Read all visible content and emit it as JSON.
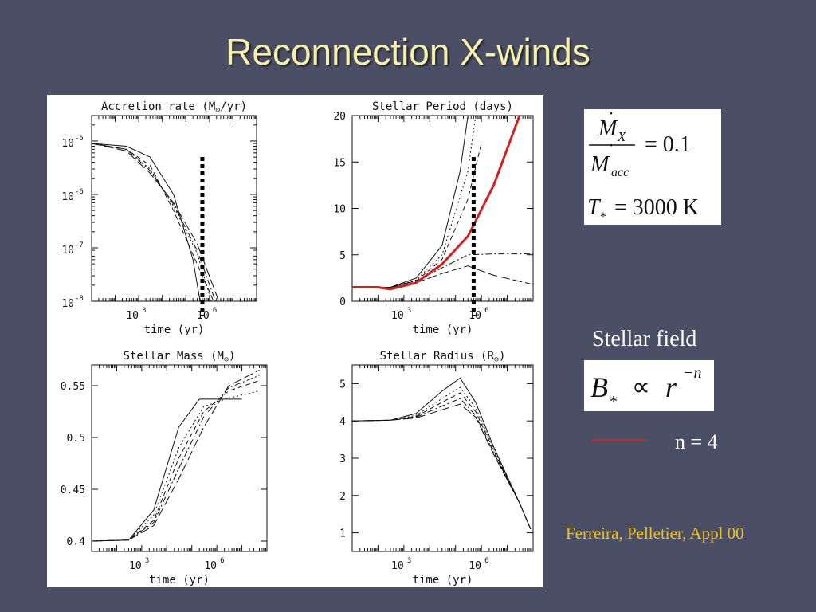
{
  "slide": {
    "title": "Reconnection X-winds",
    "citation": "Ferreira, Pelletier, Appl 00"
  },
  "equations": {
    "mdot_ratio": {
      "num": "M",
      "num_sub": "X",
      "den": "M",
      "den_sub": "acc",
      "value": "= 0.1"
    },
    "temperature": {
      "lhs": "T",
      "lhs_sub": "*",
      "value": "= 3000 K"
    },
    "field": {
      "lhs": "B",
      "lhs_sub": "*",
      "prop": "∝",
      "rhs": "r",
      "exp": "−n"
    }
  },
  "stellar_field_label": "Stellar field",
  "legend": {
    "label": "n = 4",
    "color": "#d42020"
  },
  "colors": {
    "background": "#4b4f66",
    "title": "#f6f0a8",
    "citation": "#f0c020",
    "highlight": "#d42020"
  },
  "chart_data": [
    {
      "id": "accretion",
      "type": "line",
      "title": "Accretion rate (M",
      "title_symbol": "⊙",
      "title_suffix": "/yr)",
      "xlabel": "time (yr)",
      "x_scale": "log",
      "y_scale": "log",
      "xlim": [
        10,
        100000000
      ],
      "ylim": [
        1e-08,
        3e-05
      ],
      "xticks": [
        {
          "base": "10",
          "exp": "3",
          "value": 1000
        },
        {
          "base": "10",
          "exp": "6",
          "value": 1000000
        }
      ],
      "yticks": [
        {
          "base": "10",
          "exp": "-5",
          "value": 1e-05
        },
        {
          "base": "10",
          "exp": "-6",
          "value": 1e-06
        },
        {
          "base": "10",
          "exp": "-7",
          "value": 1e-07
        },
        {
          "base": "10",
          "exp": "-8",
          "value": 1e-08
        }
      ],
      "marker_x": 500000,
      "series": [
        {
          "dash": "",
          "points": [
            [
              10,
              9e-06
            ],
            [
              300,
              8e-06
            ],
            [
              3000,
              5e-06
            ],
            [
              30000,
              1e-06
            ],
            [
              200000,
              6e-08
            ],
            [
              400000,
              1e-08
            ]
          ]
        },
        {
          "dash": "6 4",
          "points": [
            [
              10,
              9e-06
            ],
            [
              300,
              7e-06
            ],
            [
              3000,
              3.5e-06
            ],
            [
              30000,
              5e-07
            ],
            [
              300000,
              5e-08
            ],
            [
              1500000,
              1e-08
            ]
          ]
        },
        {
          "dash": "2 3",
          "points": [
            [
              10,
              9e-06
            ],
            [
              300,
              7e-06
            ],
            [
              3000,
              3e-06
            ],
            [
              30000,
              6e-07
            ],
            [
              300000,
              8e-08
            ],
            [
              1200000,
              1e-08
            ]
          ]
        },
        {
          "dash": "8 3 2 3",
          "points": [
            [
              10,
              9e-06
            ],
            [
              300,
              7e-06
            ],
            [
              3000,
              2.8e-06
            ],
            [
              30000,
              6.5e-07
            ],
            [
              300000,
              9e-08
            ],
            [
              1800000,
              1e-08
            ]
          ]
        },
        {
          "dash": "12 4",
          "points": [
            [
              10,
              9e-06
            ],
            [
              300,
              6.5e-06
            ],
            [
              3000,
              2.5e-06
            ],
            [
              30000,
              7e-07
            ],
            [
              300000,
              1.2e-07
            ],
            [
              2500000,
              1e-08
            ]
          ]
        }
      ]
    },
    {
      "id": "period",
      "type": "line",
      "title": "Stellar Period (days)",
      "title_symbol": "",
      "title_suffix": "",
      "xlabel": "time (yr)",
      "x_scale": "log",
      "y_scale": "linear",
      "xlim": [
        10,
        100000000
      ],
      "ylim": [
        0,
        20
      ],
      "xticks": [
        {
          "base": "10",
          "exp": "3",
          "value": 1000
        },
        {
          "base": "10",
          "exp": "6",
          "value": 1000000
        }
      ],
      "yticks": [
        {
          "label": "0",
          "value": 0
        },
        {
          "label": "5",
          "value": 5
        },
        {
          "label": "10",
          "value": 10
        },
        {
          "label": "15",
          "value": 15
        },
        {
          "label": "20",
          "value": 20
        }
      ],
      "marker_x": 500000,
      "series": [
        {
          "dash": "",
          "points": [
            [
              10,
              1.5
            ],
            [
              300,
              1.5
            ],
            [
              3000,
              2.5
            ],
            [
              30000,
              6
            ],
            [
              150000,
              14
            ],
            [
              300000,
              20
            ]
          ]
        },
        {
          "dash": "2 3",
          "points": [
            [
              10,
              1.5
            ],
            [
              300,
              1.5
            ],
            [
              3000,
              2.3
            ],
            [
              30000,
              5
            ],
            [
              300000,
              14
            ],
            [
              600000,
              20
            ]
          ]
        },
        {
          "dash": "6 4",
          "points": [
            [
              10,
              1.5
            ],
            [
              300,
              1.5
            ],
            [
              3000,
              2.2
            ],
            [
              30000,
              4.5
            ],
            [
              300000,
              11
            ],
            [
              1000000,
              17
            ]
          ]
        },
        {
          "dash": "8 3 2 3",
          "points": [
            [
              10,
              1.5
            ],
            [
              300,
              1.5
            ],
            [
              3000,
              2.2
            ],
            [
              30000,
              3.6
            ],
            [
              300000,
              5
            ],
            [
              3000000,
              5.1
            ],
            [
              100000000,
              5.1
            ]
          ]
        },
        {
          "dash": "12 4",
          "points": [
            [
              10,
              1.5
            ],
            [
              300,
              1.5
            ],
            [
              3000,
              2
            ],
            [
              30000,
              3
            ],
            [
              300000,
              3.8
            ],
            [
              3000000,
              2.8
            ],
            [
              100000000,
              1.8
            ]
          ]
        },
        {
          "color": "#d42020",
          "width": 3,
          "dash": "",
          "highlight": true,
          "points": [
            [
              10,
              1.5
            ],
            [
              100,
              1.5
            ],
            [
              300,
              1.3
            ],
            [
              3000,
              2
            ],
            [
              30000,
              4
            ],
            [
              300000,
              7
            ],
            [
              3000000,
              12.5
            ],
            [
              30000000,
              20
            ]
          ]
        }
      ]
    },
    {
      "id": "mass",
      "type": "line",
      "title": "Stellar Mass (M",
      "title_symbol": "⊙",
      "title_suffix": ")",
      "xlabel": "time (yr)",
      "x_scale": "log",
      "y_scale": "linear",
      "xlim": [
        10,
        100000000
      ],
      "ylim": [
        0.39,
        0.57
      ],
      "xticks": [
        {
          "base": "10",
          "exp": "3",
          "value": 1000
        },
        {
          "base": "10",
          "exp": "6",
          "value": 1000000
        }
      ],
      "yticks": [
        {
          "label": "0.4",
          "value": 0.4
        },
        {
          "label": "0.45",
          "value": 0.45
        },
        {
          "label": "0.5",
          "value": 0.5
        },
        {
          "label": "0.55",
          "value": 0.55
        }
      ],
      "marker_x": null,
      "series": [
        {
          "dash": "",
          "points": [
            [
              10,
              0.4
            ],
            [
              300,
              0.401
            ],
            [
              3000,
              0.43
            ],
            [
              30000,
              0.51
            ],
            [
              200000,
              0.537
            ],
            [
              1000000,
              0.537
            ],
            [
              10000000,
              0.537
            ]
          ]
        },
        {
          "dash": "2 3",
          "points": [
            [
              10,
              0.4
            ],
            [
              300,
              0.401
            ],
            [
              3000,
              0.425
            ],
            [
              30000,
              0.49
            ],
            [
              300000,
              0.53
            ],
            [
              3000000,
              0.538
            ],
            [
              50000000,
              0.545
            ]
          ]
        },
        {
          "dash": "6 4",
          "points": [
            [
              10,
              0.4
            ],
            [
              300,
              0.401
            ],
            [
              3000,
              0.42
            ],
            [
              30000,
              0.48
            ],
            [
              300000,
              0.525
            ],
            [
              3000000,
              0.545
            ],
            [
              50000000,
              0.555
            ]
          ]
        },
        {
          "dash": "8 3 2 3",
          "points": [
            [
              10,
              0.4
            ],
            [
              300,
              0.401
            ],
            [
              3000,
              0.418
            ],
            [
              30000,
              0.47
            ],
            [
              300000,
              0.52
            ],
            [
              3000000,
              0.548
            ],
            [
              50000000,
              0.56
            ]
          ]
        },
        {
          "dash": "12 4",
          "points": [
            [
              10,
              0.4
            ],
            [
              300,
              0.401
            ],
            [
              3000,
              0.415
            ],
            [
              30000,
              0.46
            ],
            [
              300000,
              0.51
            ],
            [
              3000000,
              0.55
            ],
            [
              50000000,
              0.565
            ]
          ]
        }
      ]
    },
    {
      "id": "radius",
      "type": "line",
      "title": "Stellar Radius (R",
      "title_symbol": "⊙",
      "title_suffix": ")",
      "xlabel": "time (yr)",
      "x_scale": "log",
      "y_scale": "linear",
      "xlim": [
        10,
        100000000
      ],
      "ylim": [
        0.5,
        5.5
      ],
      "xticks": [
        {
          "base": "10",
          "exp": "3",
          "value": 1000
        },
        {
          "base": "10",
          "exp": "6",
          "value": 1000000
        }
      ],
      "yticks": [
        {
          "label": "1",
          "value": 1
        },
        {
          "label": "2",
          "value": 2
        },
        {
          "label": "3",
          "value": 3
        },
        {
          "label": "4",
          "value": 4
        },
        {
          "label": "5",
          "value": 5
        }
      ],
      "marker_x": null,
      "series": [
        {
          "dash": "",
          "points": [
            [
              10,
              4
            ],
            [
              300,
              4.02
            ],
            [
              3000,
              4.2
            ],
            [
              30000,
              4.8
            ],
            [
              150000,
              5.15
            ],
            [
              600000,
              4.5
            ],
            [
              3000000,
              3.3
            ],
            [
              30000000,
              1.8
            ],
            [
              80000000,
              1.1
            ]
          ]
        },
        {
          "dash": "2 3",
          "points": [
            [
              10,
              4
            ],
            [
              300,
              4.02
            ],
            [
              3000,
              4.15
            ],
            [
              30000,
              4.6
            ],
            [
              150000,
              4.9
            ],
            [
              600000,
              4.35
            ],
            [
              3000000,
              3.25
            ],
            [
              30000000,
              1.8
            ],
            [
              80000000,
              1.1
            ]
          ]
        },
        {
          "dash": "6 4",
          "points": [
            [
              10,
              4
            ],
            [
              300,
              4.02
            ],
            [
              3000,
              4.12
            ],
            [
              30000,
              4.5
            ],
            [
              150000,
              4.75
            ],
            [
              600000,
              4.25
            ],
            [
              3000000,
              3.2
            ],
            [
              30000000,
              1.8
            ],
            [
              80000000,
              1.1
            ]
          ]
        },
        {
          "dash": "8 3 2 3",
          "points": [
            [
              10,
              4
            ],
            [
              300,
              4.02
            ],
            [
              3000,
              4.1
            ],
            [
              30000,
              4.4
            ],
            [
              150000,
              4.6
            ],
            [
              600000,
              4.15
            ],
            [
              3000000,
              3.15
            ],
            [
              30000000,
              1.8
            ],
            [
              80000000,
              1.1
            ]
          ]
        },
        {
          "dash": "12 4",
          "points": [
            [
              10,
              4
            ],
            [
              300,
              4.02
            ],
            [
              3000,
              4.08
            ],
            [
              30000,
              4.3
            ],
            [
              150000,
              4.45
            ],
            [
              600000,
              4.1
            ],
            [
              3000000,
              3.1
            ],
            [
              30000000,
              1.8
            ],
            [
              80000000,
              1.1
            ]
          ]
        }
      ]
    }
  ]
}
